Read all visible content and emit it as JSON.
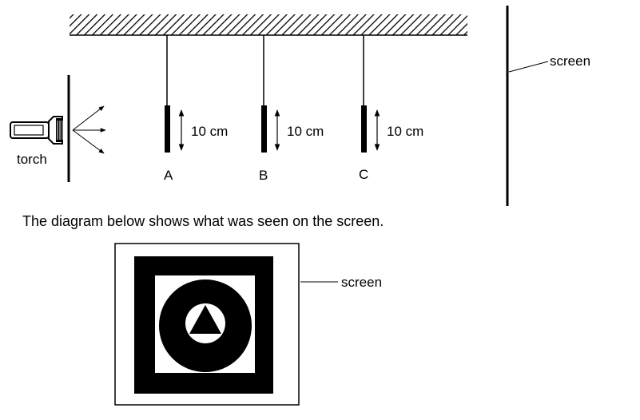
{
  "labels": {
    "screen_top": "screen",
    "torch": "torch",
    "card_a": "A",
    "card_b": "B",
    "card_c": "C",
    "height_a": "10 cm",
    "height_b": "10 cm",
    "height_c": "10 cm",
    "caption": "The diagram below shows what was seen on the screen.",
    "screen_bottom": "screen"
  },
  "colors": {
    "ink": "#000000",
    "paper": "#ffffff"
  }
}
